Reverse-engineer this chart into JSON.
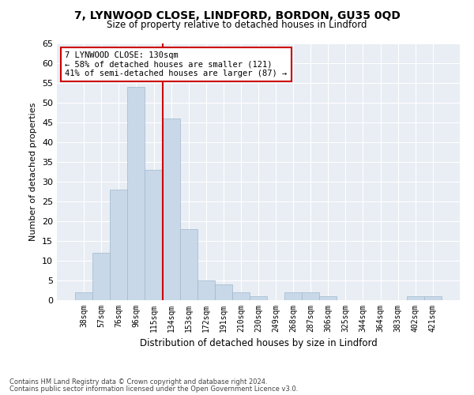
{
  "title": "7, LYNWOOD CLOSE, LINDFORD, BORDON, GU35 0QD",
  "subtitle": "Size of property relative to detached houses in Lindford",
  "xlabel": "Distribution of detached houses by size in Lindford",
  "ylabel": "Number of detached properties",
  "categories": [
    "38sqm",
    "57sqm",
    "76sqm",
    "96sqm",
    "115sqm",
    "134sqm",
    "153sqm",
    "172sqm",
    "191sqm",
    "210sqm",
    "230sqm",
    "249sqm",
    "268sqm",
    "287sqm",
    "306sqm",
    "325sqm",
    "344sqm",
    "364sqm",
    "383sqm",
    "402sqm",
    "421sqm"
  ],
  "values": [
    2,
    12,
    28,
    54,
    33,
    46,
    18,
    5,
    4,
    2,
    1,
    0,
    2,
    2,
    1,
    0,
    0,
    0,
    0,
    1,
    1
  ],
  "bar_color": "#c8d8e8",
  "bar_edge_color": "#a0b8cc",
  "vline_x_index": 4.5,
  "vline_color": "#cc0000",
  "annotation_text": "7 LYNWOOD CLOSE: 130sqm\n← 58% of detached houses are smaller (121)\n41% of semi-detached houses are larger (87) →",
  "annotation_box_color": "#ffffff",
  "annotation_box_edge_color": "#cc0000",
  "ylim": [
    0,
    65
  ],
  "yticks": [
    0,
    5,
    10,
    15,
    20,
    25,
    30,
    35,
    40,
    45,
    50,
    55,
    60,
    65
  ],
  "background_color": "#e8eef4",
  "grid_color": "#ffffff",
  "footer_line1": "Contains HM Land Registry data © Crown copyright and database right 2024.",
  "footer_line2": "Contains public sector information licensed under the Open Government Licence v3.0."
}
